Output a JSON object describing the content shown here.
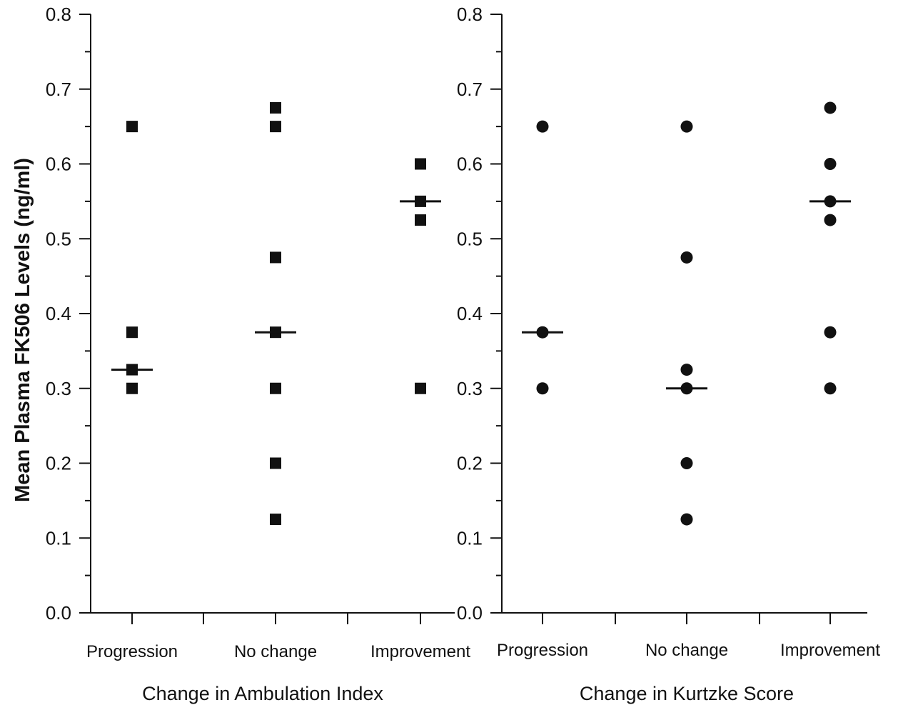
{
  "chart_data": [
    {
      "type": "scatter",
      "marker": "square",
      "xlabel": "Change in Ambulation Index",
      "ylabel": "Mean Plasma FK506 Levels (ng/ml)",
      "ylim": [
        0.0,
        0.8
      ],
      "yticks": [
        "0.0",
        "0.1",
        "0.2",
        "0.3",
        "0.4",
        "0.5",
        "0.6",
        "0.7",
        "0.8"
      ],
      "categories": [
        "Progression",
        "No change",
        "Improvement"
      ],
      "grid": false,
      "series": [
        {
          "points": [
            {
              "category": "Progression",
              "y": 0.65
            },
            {
              "category": "Progression",
              "y": 0.375
            },
            {
              "category": "Progression",
              "y": 0.325
            },
            {
              "category": "Progression",
              "y": 0.3
            },
            {
              "category": "No change",
              "y": 0.675
            },
            {
              "category": "No change",
              "y": 0.65
            },
            {
              "category": "No change",
              "y": 0.475
            },
            {
              "category": "No change",
              "y": 0.375
            },
            {
              "category": "No change",
              "y": 0.3
            },
            {
              "category": "No change",
              "y": 0.2
            },
            {
              "category": "No change",
              "y": 0.125
            },
            {
              "category": "Improvement",
              "y": 0.6
            },
            {
              "category": "Improvement",
              "y": 0.55
            },
            {
              "category": "Improvement",
              "y": 0.525
            },
            {
              "category": "Improvement",
              "y": 0.3
            }
          ]
        }
      ],
      "medians": [
        {
          "category": "Progression",
          "y": 0.325
        },
        {
          "category": "No change",
          "y": 0.375
        },
        {
          "category": "Improvement",
          "y": 0.55
        }
      ]
    },
    {
      "type": "scatter",
      "marker": "circle",
      "xlabel": "Change in Kurtzke Score",
      "ylim": [
        0.0,
        0.8
      ],
      "yticks": [
        "0.0",
        "0.1",
        "0.2",
        "0.3",
        "0.4",
        "0.5",
        "0.6",
        "0.7",
        "0.8"
      ],
      "categories": [
        "Progression",
        "No change",
        "Improvement"
      ],
      "grid": false,
      "series": [
        {
          "points": [
            {
              "category": "Progression",
              "y": 0.65
            },
            {
              "category": "Progression",
              "y": 0.375
            },
            {
              "category": "Progression",
              "y": 0.3
            },
            {
              "category": "No change",
              "y": 0.65
            },
            {
              "category": "No change",
              "y": 0.475
            },
            {
              "category": "No change",
              "y": 0.325
            },
            {
              "category": "No change",
              "y": 0.3
            },
            {
              "category": "No change",
              "y": 0.2
            },
            {
              "category": "No change",
              "y": 0.125
            },
            {
              "category": "Improvement",
              "y": 0.675
            },
            {
              "category": "Improvement",
              "y": 0.6
            },
            {
              "category": "Improvement",
              "y": 0.55
            },
            {
              "category": "Improvement",
              "y": 0.525
            },
            {
              "category": "Improvement",
              "y": 0.375
            },
            {
              "category": "Improvement",
              "y": 0.3
            }
          ]
        }
      ],
      "medians": [
        {
          "category": "Progression",
          "y": 0.375
        },
        {
          "category": "No change",
          "y": 0.3
        },
        {
          "category": "Improvement",
          "y": 0.55
        }
      ]
    }
  ]
}
